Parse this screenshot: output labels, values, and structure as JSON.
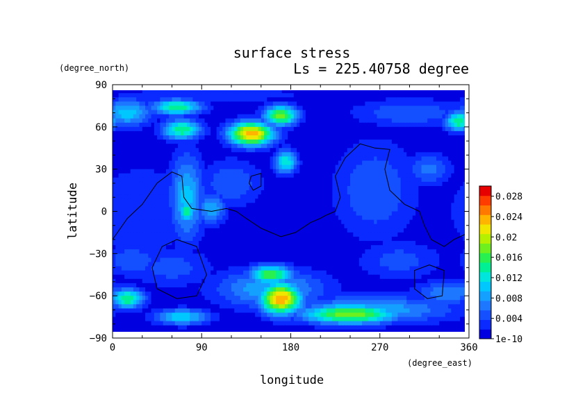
{
  "chart_data": {
    "type": "heatmap",
    "title": "surface stress",
    "subtitle": "Ls = 225.40758 degree",
    "xlabel": "longitude",
    "ylabel": "latitude",
    "xunit": "(degree_east)",
    "yunit": "(degree_north)",
    "xlim": [
      0,
      360
    ],
    "ylim": [
      -90,
      90
    ],
    "xticks": [
      0,
      90,
      180,
      270,
      360
    ],
    "yticks": [
      90,
      60,
      30,
      0,
      -30,
      -60,
      -90
    ],
    "colorbar": {
      "labels": [
        "0.028",
        "0.024",
        "0.02",
        "0.016",
        "0.012",
        "0.008",
        "0.004",
        "1e-10"
      ],
      "values": [
        0.028,
        0.024,
        0.02,
        0.016,
        0.012,
        0.008,
        0.004,
        1e-10
      ],
      "levels": [
        0.0,
        0.002,
        0.004,
        0.006,
        0.008,
        0.01,
        0.012,
        0.014,
        0.016,
        0.018,
        0.02,
        0.022,
        0.024,
        0.026,
        0.028,
        0.03
      ],
      "colors": [
        "#0000e0",
        "#0a2aff",
        "#1450ff",
        "#1e78ff",
        "#14a0ff",
        "#00c8ff",
        "#00e6dc",
        "#00f096",
        "#28f050",
        "#6ef01e",
        "#b4f000",
        "#f0e600",
        "#ffb400",
        "#ff7800",
        "#ff3c00",
        "#e60000"
      ]
    },
    "blobs": [
      {
        "lon": 140,
        "lat": 55,
        "sx": 16,
        "sy": 6,
        "v": 0.026
      },
      {
        "lon": 170,
        "lat": 68,
        "sx": 12,
        "sy": 5,
        "v": 0.02
      },
      {
        "lon": 65,
        "lat": 74,
        "sx": 18,
        "sy": 4,
        "v": 0.016
      },
      {
        "lon": 70,
        "lat": 58,
        "sx": 14,
        "sy": 5,
        "v": 0.016
      },
      {
        "lon": 15,
        "lat": 70,
        "sx": 18,
        "sy": 7,
        "v": 0.011
      },
      {
        "lon": 350,
        "lat": 64,
        "sx": 10,
        "sy": 5,
        "v": 0.016
      },
      {
        "lon": 300,
        "lat": 70,
        "sx": 40,
        "sy": 7,
        "v": 0.006
      },
      {
        "lon": 100,
        "lat": 83,
        "sx": 70,
        "sy": 4,
        "v": 0.004
      },
      {
        "lon": 175,
        "lat": 35,
        "sx": 8,
        "sy": 6,
        "v": 0.014
      },
      {
        "lon": 75,
        "lat": 10,
        "sx": 12,
        "sy": 22,
        "v": 0.011
      },
      {
        "lon": 75,
        "lat": 0,
        "sx": 6,
        "sy": 6,
        "v": 0.016
      },
      {
        "lon": 100,
        "lat": 2,
        "sx": 10,
        "sy": 8,
        "v": 0.01
      },
      {
        "lon": 120,
        "lat": 20,
        "sx": 22,
        "sy": 12,
        "v": 0.006
      },
      {
        "lon": 30,
        "lat": 0,
        "sx": 40,
        "sy": 25,
        "v": 0.004
      },
      {
        "lon": 265,
        "lat": 15,
        "sx": 30,
        "sy": 25,
        "v": 0.006
      },
      {
        "lon": 320,
        "lat": 30,
        "sx": 15,
        "sy": 8,
        "v": 0.007
      },
      {
        "lon": 170,
        "lat": -62,
        "sx": 15,
        "sy": 8,
        "v": 0.026
      },
      {
        "lon": 160,
        "lat": -45,
        "sx": 15,
        "sy": 5,
        "v": 0.018
      },
      {
        "lon": 160,
        "lat": -55,
        "sx": 40,
        "sy": 10,
        "v": 0.01
      },
      {
        "lon": 240,
        "lat": -73,
        "sx": 35,
        "sy": 5,
        "v": 0.02
      },
      {
        "lon": 260,
        "lat": -70,
        "sx": 60,
        "sy": 7,
        "v": 0.01
      },
      {
        "lon": 15,
        "lat": -62,
        "sx": 12,
        "sy": 5,
        "v": 0.016
      },
      {
        "lon": 70,
        "lat": -75,
        "sx": 20,
        "sy": 4,
        "v": 0.012
      },
      {
        "lon": 340,
        "lat": -58,
        "sx": 25,
        "sy": 6,
        "v": 0.008
      },
      {
        "lon": 60,
        "lat": -40,
        "sx": 30,
        "sy": 10,
        "v": 0.005
      },
      {
        "lon": 290,
        "lat": -35,
        "sx": 30,
        "sy": 10,
        "v": 0.005
      },
      {
        "lon": 20,
        "lat": -35,
        "sx": 20,
        "sy": 8,
        "v": 0.006
      }
    ],
    "contours": [
      [
        [
          0,
          -20
        ],
        [
          15,
          -5
        ],
        [
          30,
          5
        ],
        [
          45,
          20
        ],
        [
          60,
          28
        ],
        [
          70,
          25
        ],
        [
          72,
          10
        ],
        [
          80,
          2
        ],
        [
          100,
          0
        ],
        [
          115,
          2
        ],
        [
          125,
          0
        ],
        [
          135,
          -5
        ],
        [
          150,
          -12
        ],
        [
          170,
          -18
        ],
        [
          185,
          -15
        ],
        [
          200,
          -8
        ],
        [
          210,
          -5
        ],
        [
          215,
          -3
        ],
        [
          225,
          0
        ],
        [
          230,
          10
        ],
        [
          225,
          25
        ],
        [
          235,
          38
        ],
        [
          250,
          48
        ],
        [
          265,
          45
        ],
        [
          280,
          44
        ],
        [
          275,
          30
        ],
        [
          280,
          15
        ],
        [
          295,
          5
        ],
        [
          310,
          0
        ],
        [
          315,
          -10
        ],
        [
          322,
          -20
        ],
        [
          335,
          -25
        ],
        [
          345,
          -20
        ],
        [
          360,
          -15
        ]
      ],
      [
        [
          65,
          -20
        ],
        [
          85,
          -25
        ],
        [
          95,
          -45
        ],
        [
          85,
          -60
        ],
        [
          65,
          -62
        ],
        [
          45,
          -55
        ],
        [
          40,
          -40
        ],
        [
          50,
          -25
        ],
        [
          65,
          -20
        ]
      ],
      [
        [
          140,
          25
        ],
        [
          150,
          27
        ],
        [
          150,
          18
        ],
        [
          142,
          15
        ],
        [
          138,
          20
        ],
        [
          140,
          25
        ]
      ],
      [
        [
          320,
          -38
        ],
        [
          335,
          -42
        ],
        [
          333,
          -60
        ],
        [
          318,
          -62
        ],
        [
          305,
          -55
        ],
        [
          305,
          -42
        ],
        [
          320,
          -38
        ]
      ]
    ]
  }
}
